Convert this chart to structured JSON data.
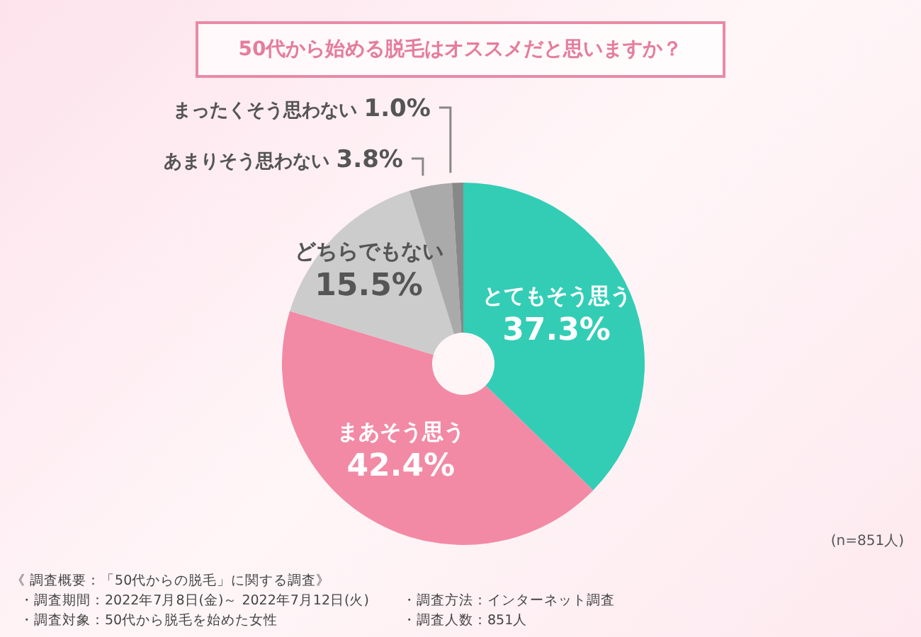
{
  "chart_data": {
    "type": "donut",
    "title": "50代から始める脱毛はオススメだと思いますか？",
    "categories": [
      "とてもそう思う",
      "まあそう思う",
      "どちらでもない",
      "あまりそう思わない",
      "まったくそう思わない"
    ],
    "values": [
      37.3,
      42.4,
      15.5,
      3.8,
      1.0
    ],
    "value_labels": [
      "37.3%",
      "42.4%",
      "15.5%",
      "3.8%",
      "1.0%"
    ],
    "colors": [
      "#33cdb5",
      "#f28aa5",
      "#cccccc",
      "#aaaaaa",
      "#888888"
    ],
    "legend": false,
    "annotations": [
      "(n=851人)",
      "《 調査概要：「50代からの脱毛」に関する調査》",
      "・調査期間：2022年7月8日(金)～ 2022年7月12日(火)",
      "・調査方法：インターネット調査",
      "・調査対象：50代から脱毛を始めた女性",
      "・調査人数：851人"
    ]
  }
}
